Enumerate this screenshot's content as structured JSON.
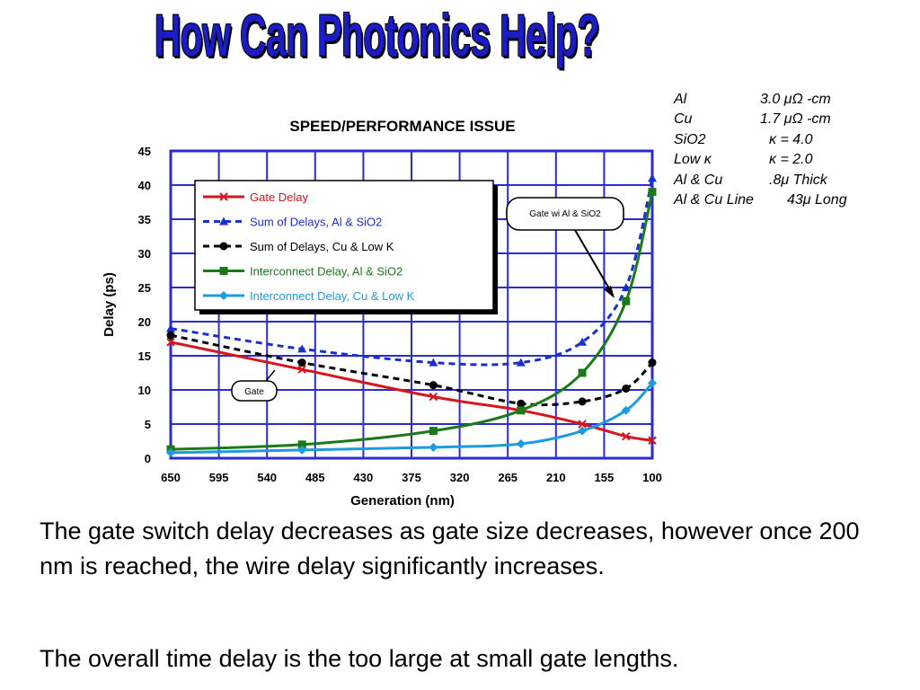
{
  "slide": {
    "title": "How Can Photonics Help?",
    "caption_1": "The gate switch delay decreases as gate size decreases, however once 200 nm is reached, the wire delay significantly increases.",
    "caption_2": "The overall time delay is the too large at small gate lengths."
  },
  "properties": [
    {
      "name": "Al",
      "value": "3.0 μΩ -cm"
    },
    {
      "name": "Cu",
      "value": "1.7 μΩ -cm"
    },
    {
      "name": "SiO2",
      "value": "κ = 4.0"
    },
    {
      "name": "Low κ",
      "value": "κ = 2.0"
    },
    {
      "name": "Al & Cu",
      "value": ".8μ Thick"
    },
    {
      "name": "Al & Cu Line",
      "value": "43μ Long"
    }
  ],
  "chart_data": {
    "type": "line",
    "title": "SPEED/PERFORMANCE  ISSUE",
    "xlabel": "Generation (nm)",
    "ylabel": "Delay (ps)",
    "x_ticks": [
      "650",
      "595",
      "540",
      "485",
      "430",
      "375",
      "320",
      "265",
      "210",
      "155",
      "100"
    ],
    "xlim": [
      650,
      100
    ],
    "ylim": [
      0,
      45
    ],
    "y_ticks": [
      0,
      5,
      10,
      15,
      20,
      25,
      30,
      35,
      40,
      45
    ],
    "grid": true,
    "legend_position": "top-left",
    "series": [
      {
        "name": "Gate Delay",
        "color": "#d6161c",
        "dash": false,
        "marker": "x",
        "points": [
          [
            650,
            17
          ],
          [
            500,
            13
          ],
          [
            350,
            9
          ],
          [
            250,
            7
          ],
          [
            180,
            5
          ],
          [
            130,
            3.2
          ],
          [
            100,
            2.6
          ]
        ]
      },
      {
        "name": "Sum of Delays, Al & SiO2",
        "color": "#1a2fd0",
        "dash": true,
        "marker": "triangle",
        "points": [
          [
            650,
            19
          ],
          [
            500,
            16
          ],
          [
            350,
            14
          ],
          [
            250,
            14
          ],
          [
            180,
            17
          ],
          [
            130,
            25
          ],
          [
            100,
            41
          ]
        ]
      },
      {
        "name": "Sum of Delays, Cu & Low K",
        "color": "#000000",
        "dash": true,
        "marker": "circle",
        "points": [
          [
            650,
            18
          ],
          [
            500,
            14
          ],
          [
            350,
            10.7
          ],
          [
            250,
            8
          ],
          [
            180,
            8.3
          ],
          [
            130,
            10.2
          ],
          [
            100,
            14
          ]
        ]
      },
      {
        "name": "Interconnect Delay, Al & SiO2",
        "color": "#1a7a1a",
        "dash": false,
        "marker": "square",
        "points": [
          [
            650,
            1.3
          ],
          [
            500,
            2
          ],
          [
            350,
            4
          ],
          [
            250,
            7
          ],
          [
            180,
            12.5
          ],
          [
            130,
            23
          ],
          [
            100,
            39
          ]
        ]
      },
      {
        "name": "Interconnect Delay, Cu & Low K",
        "color": "#1e9be0",
        "dash": false,
        "marker": "diamond",
        "points": [
          [
            650,
            0.8
          ],
          [
            500,
            1.2
          ],
          [
            350,
            1.6
          ],
          [
            250,
            2.1
          ],
          [
            180,
            4
          ],
          [
            130,
            7
          ],
          [
            100,
            11
          ]
        ]
      }
    ],
    "annotations": {
      "gate": "Gate",
      "gate_callout": "Gate wi Al & SiO2"
    }
  }
}
